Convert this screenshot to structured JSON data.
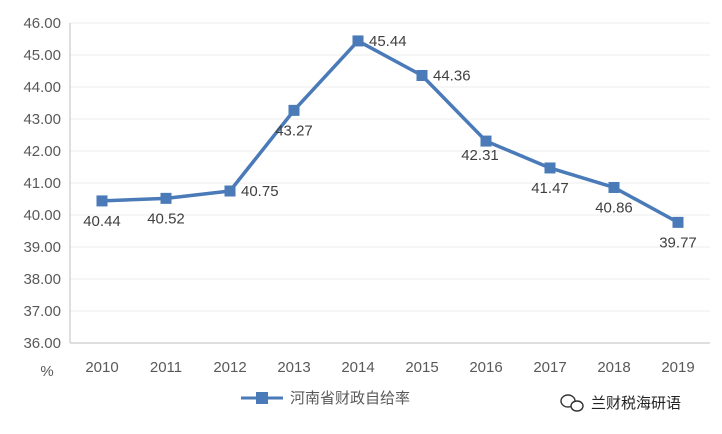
{
  "colors": {
    "series": "#4a7ab8",
    "grid": "#eeeeee",
    "axis": "#bfbfbf",
    "text": "#595959"
  },
  "chart_data": {
    "type": "line",
    "x": [
      "2010",
      "2011",
      "2012",
      "2013",
      "2014",
      "2015",
      "2016",
      "2017",
      "2018",
      "2019"
    ],
    "series": [
      {
        "name": "河南省财政自给率",
        "values": [
          40.44,
          40.52,
          40.75,
          43.27,
          45.44,
          44.36,
          42.31,
          41.47,
          40.86,
          39.77
        ]
      }
    ],
    "data_labels": [
      "40.44",
      "40.52",
      "40.75",
      "43.27",
      "45.44",
      "44.36",
      "42.31",
      "41.47",
      "40.86",
      "39.77"
    ],
    "yticks": [
      "36.00",
      "37.00",
      "38.00",
      "39.00",
      "40.00",
      "41.00",
      "42.00",
      "43.00",
      "44.00",
      "45.00",
      "46.00"
    ],
    "ylim": [
      36,
      46
    ],
    "yunit": "%",
    "grid": true,
    "legend": "bottom-center",
    "marker": "square"
  },
  "watermark": {
    "icon": "wechat-icon",
    "text": "兰财税海研语"
  }
}
